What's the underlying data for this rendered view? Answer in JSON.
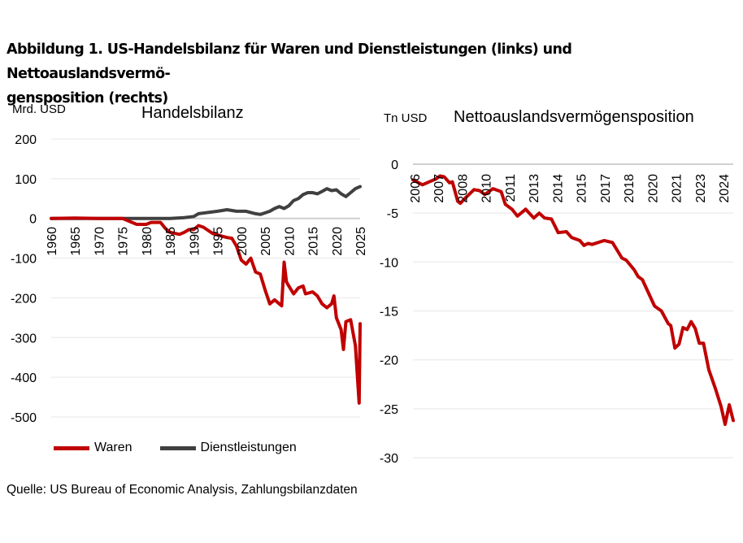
{
  "title": "Abbildung 1. US-Handelsbilanz für Waren und Dienstleistungen (links) und Nettoauslandsvermö-gensposition (rechts)",
  "title_line1": "Abbildung 1. US-Handelsbilanz für Waren und Dienstleistungen (links) und Nettoauslandsvermö-",
  "title_line2": "gensposition (rechts)",
  "source": "Quelle: US Bureau of Economic Analysis, Zahlungsbilanzdaten",
  "chart_data": [
    {
      "type": "line",
      "title": "Handelsbilanz",
      "ylabel": "Mrd. USD",
      "ylim": [
        -500,
        200
      ],
      "yticks": [
        200,
        100,
        0,
        -100,
        -200,
        -300,
        -400,
        -500
      ],
      "xlim": [
        1960,
        2025
      ],
      "xticks": [
        1960,
        1965,
        1970,
        1975,
        1980,
        1985,
        1990,
        1995,
        2000,
        2005,
        2010,
        2015,
        2020,
        2025
      ],
      "grid": true,
      "legend": "bottom",
      "series": [
        {
          "name": "Waren",
          "color": "#C00000",
          "points": [
            [
              1960,
              0
            ],
            [
              1965,
              1
            ],
            [
              1970,
              0
            ],
            [
              1975,
              0
            ],
            [
              1976,
              -5
            ],
            [
              1978,
              -15
            ],
            [
              1980,
              -15
            ],
            [
              1981,
              -10
            ],
            [
              1983,
              -10
            ],
            [
              1984,
              -25
            ],
            [
              1985,
              -35
            ],
            [
              1987,
              -40
            ],
            [
              1988,
              -35
            ],
            [
              1989,
              -28
            ],
            [
              1990,
              -28
            ],
            [
              1991,
              -18
            ],
            [
              1992,
              -22
            ],
            [
              1994,
              -38
            ],
            [
              1996,
              -45
            ],
            [
              1997,
              -48
            ],
            [
              1998,
              -50
            ],
            [
              1999,
              -70
            ],
            [
              2000,
              -105
            ],
            [
              2001,
              -115
            ],
            [
              2002,
              -100
            ],
            [
              2003,
              -135
            ],
            [
              2004,
              -140
            ],
            [
              2005,
              -180
            ],
            [
              2006,
              -215
            ],
            [
              2007,
              -205
            ],
            [
              2008,
              -215
            ],
            [
              2008.5,
              -220
            ],
            [
              2009,
              -110
            ],
            [
              2009.5,
              -160
            ],
            [
              2010,
              -170
            ],
            [
              2011,
              -190
            ],
            [
              2012,
              -175
            ],
            [
              2013,
              -170
            ],
            [
              2013.5,
              -190
            ],
            [
              2015,
              -185
            ],
            [
              2016,
              -195
            ],
            [
              2017,
              -215
            ],
            [
              2018,
              -225
            ],
            [
              2019,
              -215
            ],
            [
              2019.5,
              -195
            ],
            [
              2020,
              -250
            ],
            [
              2021,
              -280
            ],
            [
              2021.5,
              -330
            ],
            [
              2022,
              -260
            ],
            [
              2023,
              -255
            ],
            [
              2024,
              -320
            ],
            [
              2024.8,
              -465
            ],
            [
              2025,
              -265
            ]
          ]
        },
        {
          "name": "Dienstleistungen",
          "color": "#404040",
          "points": [
            [
              1960,
              0
            ],
            [
              1970,
              0
            ],
            [
              1980,
              0
            ],
            [
              1985,
              0
            ],
            [
              1988,
              2
            ],
            [
              1990,
              5
            ],
            [
              1991,
              12
            ],
            [
              1993,
              15
            ],
            [
              1995,
              18
            ],
            [
              1997,
              22
            ],
            [
              1999,
              18
            ],
            [
              2001,
              18
            ],
            [
              2003,
              12
            ],
            [
              2004,
              10
            ],
            [
              2005,
              14
            ],
            [
              2006,
              18
            ],
            [
              2007,
              25
            ],
            [
              2008,
              30
            ],
            [
              2009,
              25
            ],
            [
              2010,
              32
            ],
            [
              2011,
              45
            ],
            [
              2012,
              50
            ],
            [
              2013,
              60
            ],
            [
              2014,
              65
            ],
            [
              2015,
              65
            ],
            [
              2016,
              62
            ],
            [
              2017,
              68
            ],
            [
              2018,
              75
            ],
            [
              2019,
              70
            ],
            [
              2020,
              72
            ],
            [
              2021,
              62
            ],
            [
              2022,
              55
            ],
            [
              2023,
              65
            ],
            [
              2024,
              75
            ],
            [
              2025,
              80
            ]
          ]
        }
      ]
    },
    {
      "type": "line",
      "title": "Nettoauslandsvermögensposition",
      "ylabel": "Tn USD",
      "ylim": [
        -30,
        0
      ],
      "yticks": [
        0,
        -5,
        -10,
        -15,
        -20,
        -25,
        -30
      ],
      "xlim": [
        2006,
        2025.25
      ],
      "xticks": [
        "2006",
        "2007",
        "2008",
        "2010",
        "2011",
        "2013",
        "2014",
        "2015",
        "2017",
        "2018",
        "2020",
        "2021",
        "2023",
        "2024"
      ],
      "grid": true,
      "series": [
        {
          "color": "#C00000",
          "points": [
            [
              2006.0,
              -1.6
            ],
            [
              2006.57,
              -2.1
            ],
            [
              2007.39,
              -1.5
            ],
            [
              2007.63,
              -1.2
            ],
            [
              2007.88,
              -1.3
            ],
            [
              2008.2,
              -1.9
            ],
            [
              2008.37,
              -1.8
            ],
            [
              2008.69,
              -3.8
            ],
            [
              2008.85,
              -4.0
            ],
            [
              2009.18,
              -3.4
            ],
            [
              2009.67,
              -2.6
            ],
            [
              2010.0,
              -2.7
            ],
            [
              2010.32,
              -3.1
            ],
            [
              2010.81,
              -2.5
            ],
            [
              2011.3,
              -2.8
            ],
            [
              2011.55,
              -4.1
            ],
            [
              2011.95,
              -4.6
            ],
            [
              2012.28,
              -5.3
            ],
            [
              2012.77,
              -4.6
            ],
            [
              2013.26,
              -5.5
            ],
            [
              2013.59,
              -5.0
            ],
            [
              2013.91,
              -5.5
            ],
            [
              2014.32,
              -5.6
            ],
            [
              2014.73,
              -7.0
            ],
            [
              2015.22,
              -6.9
            ],
            [
              2015.54,
              -7.5
            ],
            [
              2016.03,
              -7.8
            ],
            [
              2016.28,
              -8.3
            ],
            [
              2016.52,
              -8.1
            ],
            [
              2016.77,
              -8.2
            ],
            [
              2017.5,
              -7.8
            ],
            [
              2017.99,
              -8.0
            ],
            [
              2018.56,
              -9.6
            ],
            [
              2018.81,
              -9.8
            ],
            [
              2019.3,
              -10.8
            ],
            [
              2019.54,
              -11.5
            ],
            [
              2019.79,
              -11.8
            ],
            [
              2020.52,
              -14.5
            ],
            [
              2020.93,
              -15.0
            ],
            [
              2021.34,
              -16.3
            ],
            [
              2021.5,
              -16.5
            ],
            [
              2021.74,
              -18.8
            ],
            [
              2021.99,
              -18.4
            ],
            [
              2022.23,
              -16.7
            ],
            [
              2022.48,
              -16.9
            ],
            [
              2022.72,
              -16.1
            ],
            [
              2022.97,
              -16.8
            ],
            [
              2023.21,
              -18.3
            ],
            [
              2023.46,
              -18.3
            ],
            [
              2023.78,
              -21.0
            ],
            [
              2024.19,
              -23.0
            ],
            [
              2024.52,
              -24.8
            ],
            [
              2024.76,
              -26.6
            ],
            [
              2025.01,
              -24.6
            ],
            [
              2025.25,
              -26.2
            ]
          ]
        }
      ]
    }
  ]
}
